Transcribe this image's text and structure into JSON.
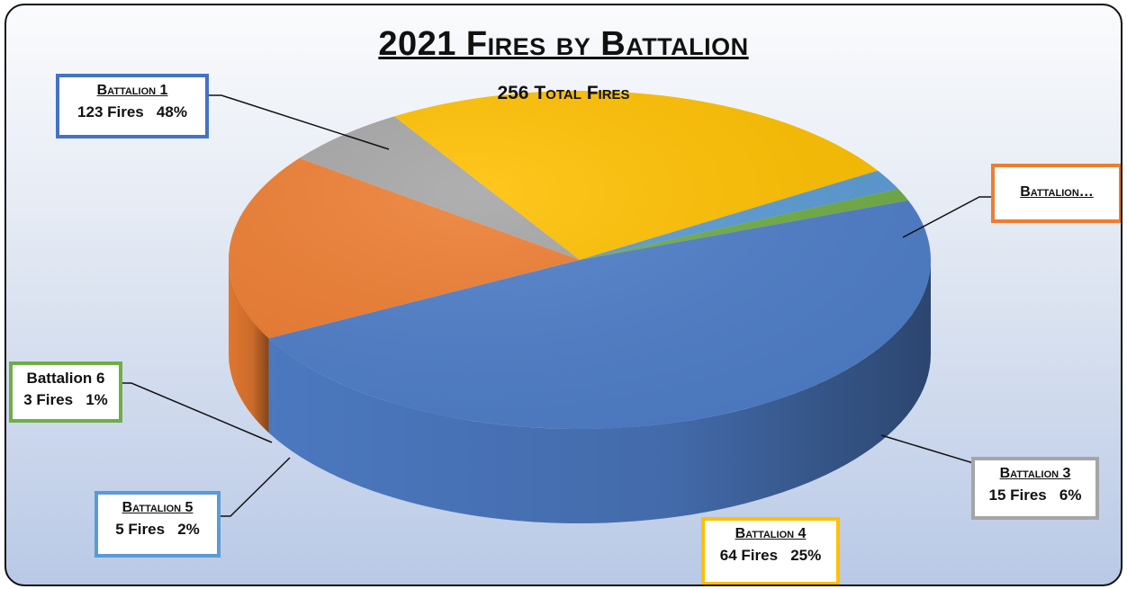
{
  "chart_data": {
    "type": "pie",
    "title": "2021 Fires by Battalion",
    "subtitle": "256 Total Fires",
    "slices": [
      {
        "name": "Battalion 1",
        "value": 123,
        "percent": "48%",
        "fires_text": "123 Fires",
        "color": "#4f7ec9"
      },
      {
        "name": "Battalion…",
        "value": 46,
        "percent": "18%",
        "fires_text": "",
        "color": "#ed7d31"
      },
      {
        "name": "Battalion 3",
        "value": 15,
        "percent": "6%",
        "fires_text": "15 Fires",
        "color": "#a5a5a5"
      },
      {
        "name": "Battalion 4",
        "value": 64,
        "percent": "25%",
        "fires_text": "64 Fires",
        "color": "#ffc000"
      },
      {
        "name": "Battalion 5",
        "value": 5,
        "percent": "2%",
        "fires_text": "5 Fires",
        "color": "#5b9bd5"
      },
      {
        "name": "Battalion 6",
        "value": 3,
        "percent": "1%",
        "fires_text": "3 Fires",
        "color": "#70ad47"
      }
    ],
    "legend": "none",
    "style": "3d"
  },
  "labels": {
    "b1": {
      "name": "Battalion 1",
      "value": "123 Fires   48%"
    },
    "b2": {
      "name": "Battalion…"
    },
    "b3": {
      "name": "Battalion 3",
      "value": "15 Fires   6%"
    },
    "b4": {
      "name": "Battalion 4",
      "value": "64 Fires   25%"
    },
    "b5": {
      "name": "Battalion 5",
      "value": "5 Fires   2%"
    },
    "b6": {
      "name": "Battalion 6",
      "value": "3 Fires   1%"
    }
  }
}
